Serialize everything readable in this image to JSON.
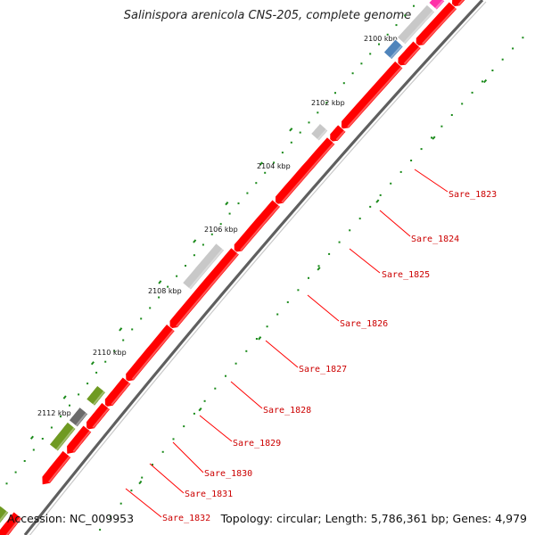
{
  "title": "Salinispora arenicola CNS-205, complete genome",
  "footer": {
    "accession": "Accession: NC_009953",
    "stats": "Topology: circular; Length: 5,786,361 bp; Genes: 4,979"
  },
  "colors": {
    "forward_gene": "#ff0000",
    "grey_gene": "#c8c8c8",
    "dark_grey_gene": "#6b6b6b",
    "olive_gene": "#6f9a22",
    "blue_gene": "#4f84bb",
    "magenta_gene": "#ff2fa8",
    "pink_gene": "#f08080",
    "label_red": "#cc0000",
    "backbone": "#7a7a7a",
    "tick_green": "#1a8a1a"
  },
  "ruler_labels": [
    "2100 kbp",
    "2102 kbp",
    "2104 kbp",
    "2106 kbp",
    "2108 kbp",
    "2110 kbp",
    "2112 kbp"
  ],
  "gene_labels": [
    "Sare_1823",
    "Sare_1824",
    "Sare_1825",
    "Sare_1826",
    "Sare_1827",
    "Sare_1828",
    "Sare_1829",
    "Sare_1830",
    "Sare_1831",
    "Sare_1832"
  ]
}
